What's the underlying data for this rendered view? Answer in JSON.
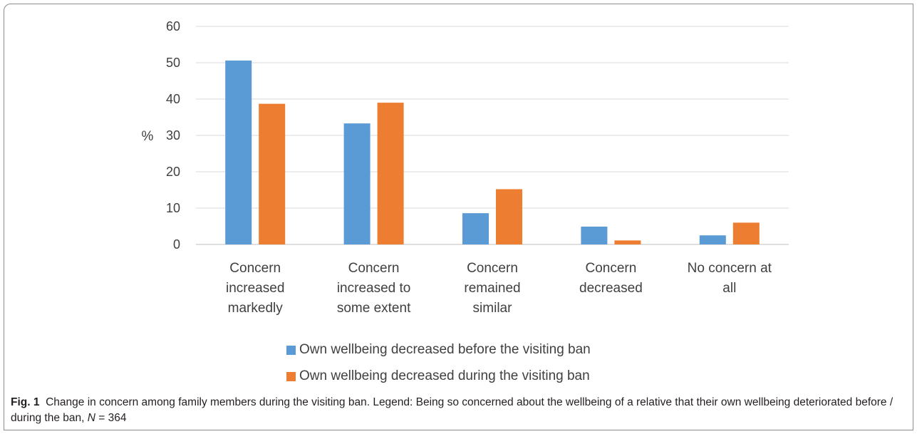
{
  "chart_data": {
    "type": "bar",
    "title": "",
    "xlabel": "",
    "ylabel": "%",
    "ylim": [
      0,
      60
    ],
    "yticks": [
      0,
      10,
      20,
      30,
      40,
      50,
      60
    ],
    "grid": true,
    "legend_position": "bottom",
    "categories": [
      [
        "Concern",
        "increased",
        "markedly"
      ],
      [
        "Concern",
        "increased to",
        "some extent"
      ],
      [
        "Concern",
        "remained",
        "similar"
      ],
      [
        "Concern",
        "decreased"
      ],
      [
        "No concern at",
        "all"
      ]
    ],
    "series": [
      {
        "name": "Own wellbeing decreased before the visiting ban",
        "color": "#5b9bd5",
        "values": [
          50.6,
          33.3,
          8.6,
          4.9,
          2.5
        ]
      },
      {
        "name": "Own wellbeing decreased during the visiting ban",
        "color": "#ed7d31",
        "values": [
          38.7,
          39.0,
          15.2,
          1.1,
          6.0
        ]
      }
    ]
  },
  "caption": {
    "fig_label": "Fig. 1",
    "text_main": "Change in concern among family members during the visiting ban. Legend: Being so concerned about the wellbeing of a relative that their own wellbeing deteriorated before / during the ban, ",
    "n_var": "N",
    "n_value": " = 364"
  }
}
